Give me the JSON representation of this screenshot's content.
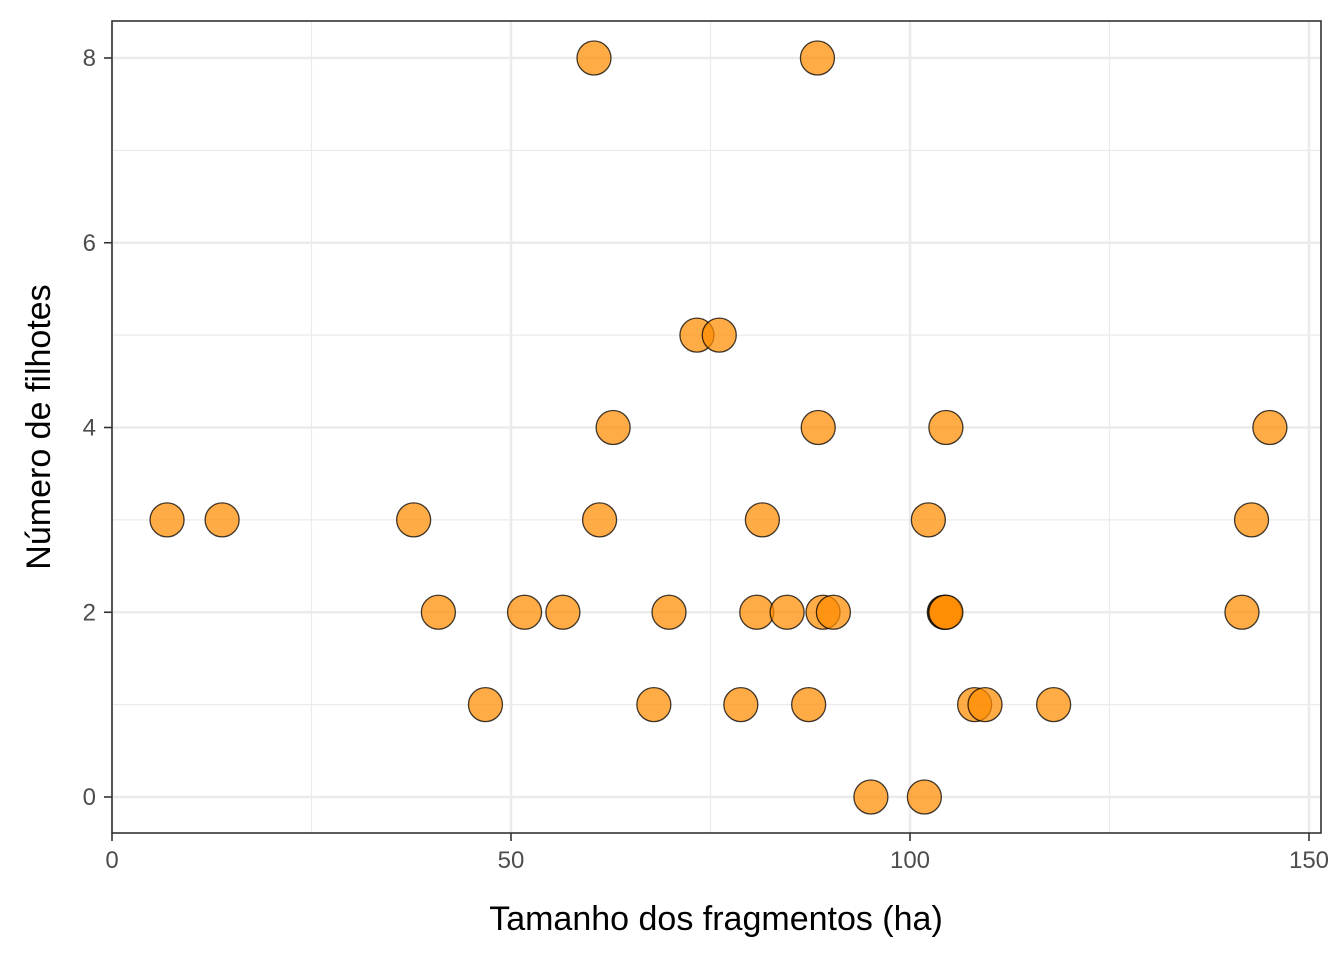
{
  "chart_data": {
    "type": "scatter",
    "title": "",
    "xlabel": "Tamanho dos fragmentos (ha)",
    "ylabel": "Número de filhotes",
    "xlim": [
      0,
      150
    ],
    "ylim": [
      0,
      8
    ],
    "x_ticks": [
      0,
      50,
      100,
      150
    ],
    "y_ticks": [
      0,
      2,
      4,
      6,
      8
    ],
    "grid": true,
    "point_color": "#ff8c00",
    "point_stroke": "#000000",
    "points": [
      {
        "x": 6.9,
        "y": 3
      },
      {
        "x": 13.8,
        "y": 3
      },
      {
        "x": 37.8,
        "y": 3
      },
      {
        "x": 40.9,
        "y": 2
      },
      {
        "x": 46.8,
        "y": 1
      },
      {
        "x": 51.7,
        "y": 2
      },
      {
        "x": 56.5,
        "y": 2
      },
      {
        "x": 60.4,
        "y": 8
      },
      {
        "x": 61.1,
        "y": 3
      },
      {
        "x": 62.8,
        "y": 4
      },
      {
        "x": 67.9,
        "y": 1
      },
      {
        "x": 69.8,
        "y": 2
      },
      {
        "x": 73.3,
        "y": 5
      },
      {
        "x": 76.1,
        "y": 5
      },
      {
        "x": 78.8,
        "y": 1
      },
      {
        "x": 80.8,
        "y": 2
      },
      {
        "x": 81.5,
        "y": 3
      },
      {
        "x": 84.6,
        "y": 2
      },
      {
        "x": 87.3,
        "y": 1
      },
      {
        "x": 88.4,
        "y": 8
      },
      {
        "x": 88.5,
        "y": 4
      },
      {
        "x": 89.1,
        "y": 2
      },
      {
        "x": 90.4,
        "y": 2
      },
      {
        "x": 95.1,
        "y": 0
      },
      {
        "x": 101.8,
        "y": 0
      },
      {
        "x": 102.3,
        "y": 3
      },
      {
        "x": 104.3,
        "y": 2
      },
      {
        "x": 104.4,
        "y": 2
      },
      {
        "x": 104.5,
        "y": 2
      },
      {
        "x": 104.5,
        "y": 4
      },
      {
        "x": 108.1,
        "y": 1
      },
      {
        "x": 109.4,
        "y": 1
      },
      {
        "x": 118.0,
        "y": 1
      },
      {
        "x": 141.6,
        "y": 2
      },
      {
        "x": 142.8,
        "y": 3
      },
      {
        "x": 145.1,
        "y": 4
      }
    ]
  }
}
